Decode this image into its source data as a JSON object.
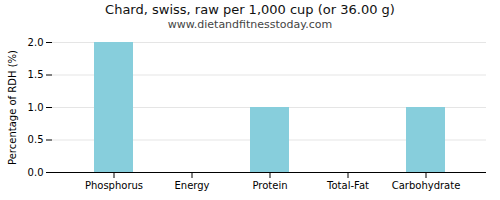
{
  "chart_data": {
    "type": "bar",
    "title": "Chard, swiss, raw per 1,000 cup (or 36.00 g)",
    "subtitle": "www.dietandfitnesstoday.com",
    "categories": [
      "Phosphorus",
      "Energy",
      "Protein",
      "Total-Fat",
      "Carbohydrate"
    ],
    "values": [
      2.0,
      0.0,
      1.0,
      0.0,
      1.0
    ],
    "color": "#87cedc",
    "ylabel": "Percentage of RDH (%)",
    "ylim": [
      0,
      2.0
    ],
    "yticks": [
      {
        "value": 0,
        "label": "0.0"
      },
      0.5,
      {
        "value": 1,
        "label": "1.0"
      },
      1.5,
      {
        "value": 2,
        "label": "2.0"
      }
    ],
    "grid": true
  }
}
